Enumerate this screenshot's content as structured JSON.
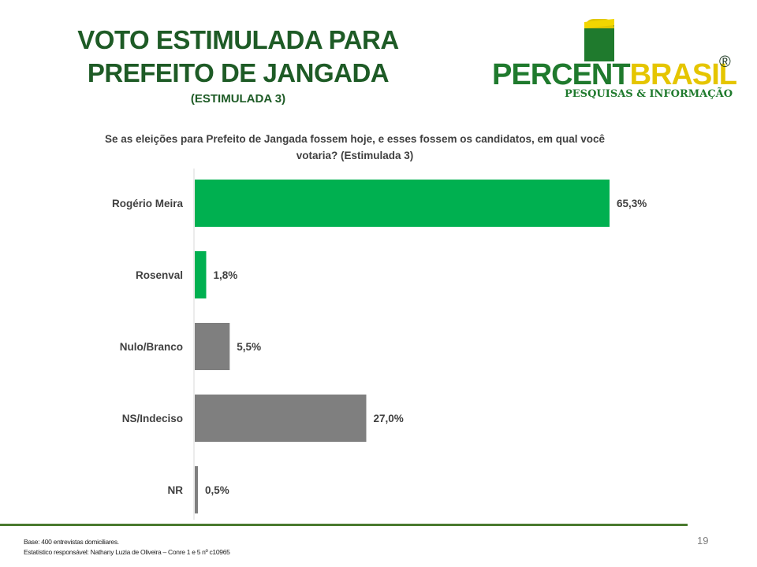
{
  "title": "VOTO ESTIMULADA PARA PREFEITO DE JANGADA",
  "subtitle": "(ESTIMULADA 3)",
  "logo": {
    "word_green": "PERCENT",
    "word_yellow": "BRASIL",
    "registered": "®",
    "tagline": "PESQUISAS & INFORMAÇÃO",
    "colors": {
      "green": "#1f7a2d",
      "yellow": "#e5c500"
    }
  },
  "question": "Se as eleições para Prefeito de Jangada fossem hoje, e esses fossem os candidatos, em qual você votaria? (Estimulada 3)",
  "chart_data": {
    "type": "bar",
    "orientation": "horizontal",
    "categories": [
      "Rogério Meira",
      "Rosenval",
      "Nulo/Branco",
      "NS/Indeciso",
      "NR"
    ],
    "values": [
      65.3,
      1.8,
      5.5,
      27.0,
      0.5
    ],
    "value_labels": [
      "65,3%",
      "1,8%",
      "5,5%",
      "27,0%",
      "0,5%"
    ],
    "colors": [
      "#00b050",
      "#00b050",
      "#7f7f7f",
      "#7f7f7f",
      "#7f7f7f"
    ],
    "xlim": [
      0,
      65.3
    ],
    "grid": false,
    "legend": "none"
  },
  "footer": {
    "base": "Base: 400 entrevistas domiciliares.",
    "statistician": "Estatístico responsável: Nathany Luzia de Oliveira – Conre 1 e 5 nº c10965",
    "page_number": "19"
  }
}
